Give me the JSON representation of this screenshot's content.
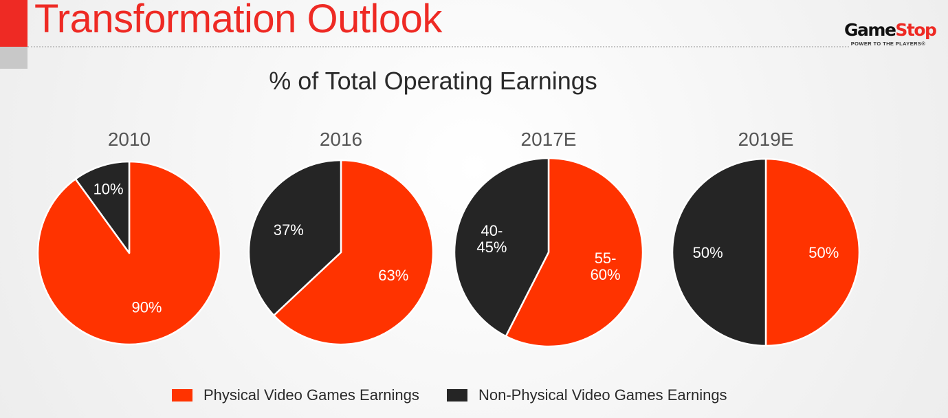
{
  "page": {
    "title": "Transformation Outlook",
    "logo_name_part1": "Game",
    "logo_name_part2": "Stop",
    "logo_tagline": "POWER TO THE PLAYERS",
    "logo_trademark": "®"
  },
  "colors": {
    "brand_red": "#ee2a24",
    "physical": "#ff3300",
    "non_physical": "#252525"
  },
  "chart_data": {
    "type": "pie",
    "title": "% of Total Operating Earnings",
    "legend": [
      {
        "name": "Physical Video Games Earnings",
        "color": "#ff3300"
      },
      {
        "name": "Non-Physical Video Games Earnings",
        "color": "#252525"
      }
    ],
    "pies": [
      {
        "year": "2010",
        "values": [
          90,
          10
        ],
        "labels": [
          "90%",
          "10%"
        ]
      },
      {
        "year": "2016",
        "values": [
          63,
          37
        ],
        "labels": [
          "63%",
          "37%"
        ]
      },
      {
        "year": "2017E",
        "values": [
          57.5,
          42.5
        ],
        "labels": [
          "55-\n60%",
          "40-\n45%"
        ]
      },
      {
        "year": "2019E",
        "values": [
          50,
          50
        ],
        "labels": [
          "50%",
          "50%"
        ]
      }
    ]
  }
}
